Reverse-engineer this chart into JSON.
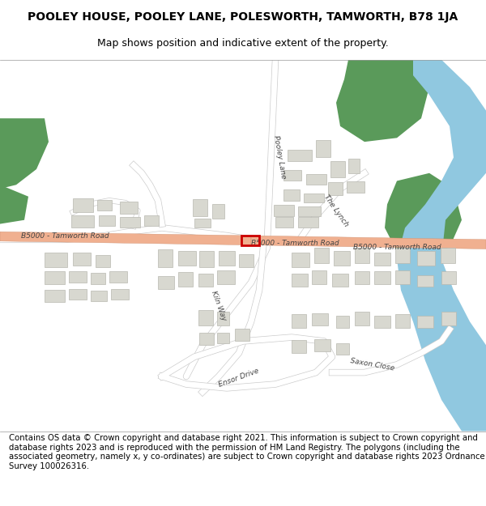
{
  "title_line1": "POOLEY HOUSE, POOLEY LANE, POLESWORTH, TAMWORTH, B78 1JA",
  "title_line2": "Map shows position and indicative extent of the property.",
  "footer_text": "Contains OS data © Crown copyright and database right 2021. This information is subject to Crown copyright and database rights 2023 and is reproduced with the permission of HM Land Registry. The polygons (including the associated geometry, namely x, y co-ordinates) are subject to Crown copyright and database rights 2023 Ordnance Survey 100026316.",
  "map_bg": "#ffffff",
  "road_main_color": "#f0b090",
  "road_main_outline": "#d09070",
  "road_minor_color": "#ffffff",
  "road_minor_outline": "#cccccc",
  "green_color": "#5a9a5a",
  "water_color": "#90c8e0",
  "building_color": "#d8d8d0",
  "building_edge": "#b8b8b0",
  "highlight_fill": "none",
  "highlight_edge": "#cc0000",
  "text_color": "#444444",
  "title_fontsize": 10.5,
  "footer_fontsize": 7.5
}
